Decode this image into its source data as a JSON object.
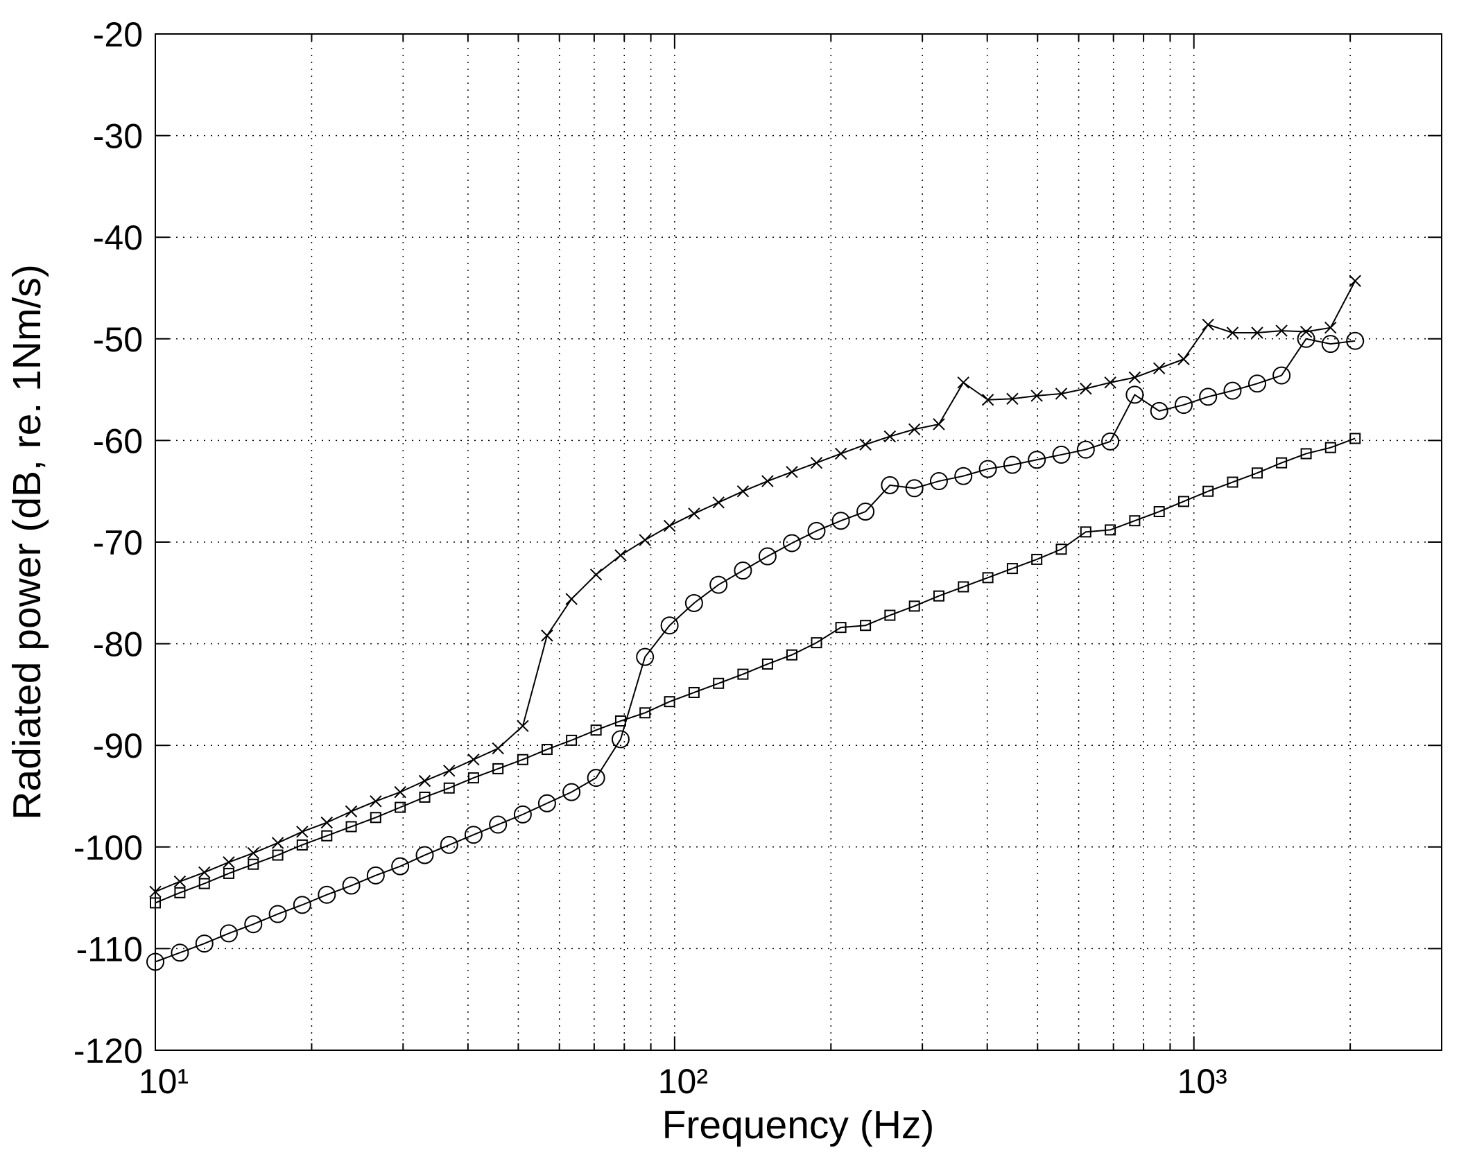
{
  "chart_data": {
    "type": "line",
    "xlabel": "Frequency (Hz)",
    "ylabel": "Radiated power (dB, re. 1Nm/s)",
    "xscale": "log",
    "grid": true,
    "minor_grid": true,
    "xlim": [
      10,
      3000
    ],
    "ylim": [
      -120,
      -20
    ],
    "xticks": [
      {
        "value": 10,
        "label": "10¹"
      },
      {
        "value": 100,
        "label": "10²"
      },
      {
        "value": 1000,
        "label": "10³"
      }
    ],
    "yticks": [
      -120,
      -110,
      -100,
      -90,
      -80,
      -70,
      -60,
      -50,
      -40,
      -30,
      -20
    ],
    "x": [
      10,
      11.15,
      12.43,
      13.85,
      15.44,
      17.21,
      19.18,
      21.39,
      23.84,
      26.57,
      29.62,
      33.02,
      36.8,
      41.0,
      45.7,
      51.0,
      56.8,
      63.3,
      70.6,
      78.7,
      87.7,
      97.8,
      109,
      121.5,
      135.4,
      151,
      168.2,
      187.6,
      209,
      233.1,
      259.8,
      289.6,
      322.8,
      359.8,
      401.1,
      447.1,
      498.3,
      555.5,
      619.2,
      690.2,
      769.2,
      857.5,
      955.7,
      1065,
      1187,
      1324,
      1475,
      1645,
      1833,
      2044
    ],
    "series": [
      {
        "color": "#000000",
        "marker": "x",
        "values": [
          -104.4,
          -103.4,
          -102.5,
          -101.5,
          -100.6,
          -99.6,
          -98.5,
          -97.6,
          -96.5,
          -95.5,
          -94.6,
          -93.5,
          -92.5,
          -91.4,
          -90.3,
          -88.1,
          -79.2,
          -75.6,
          -73.2,
          -71.3,
          -69.8,
          -68.4,
          -67.2,
          -66.1,
          -65.0,
          -64.0,
          -63.1,
          -62.2,
          -61.3,
          -60.4,
          -59.6,
          -58.9,
          -58.4,
          -54.3,
          -56.0,
          -55.9,
          -55.6,
          -55.4,
          -54.9,
          -54.3,
          -53.8,
          -52.9,
          -52.0,
          -48.6,
          -49.4,
          -49.4,
          -49.2,
          -49.3,
          -48.9,
          -44.3
        ]
      },
      {
        "color": "#000000",
        "marker": "o",
        "values": [
          -111.3,
          -110.4,
          -109.5,
          -108.5,
          -107.6,
          -106.6,
          -105.7,
          -104.7,
          -103.8,
          -102.8,
          -101.9,
          -100.8,
          -99.8,
          -98.8,
          -97.8,
          -96.8,
          -95.7,
          -94.6,
          -93.2,
          -89.4,
          -81.3,
          -78.2,
          -76.0,
          -74.2,
          -72.8,
          -71.4,
          -70.1,
          -68.9,
          -67.9,
          -67.0,
          -64.4,
          -64.7,
          -64.0,
          -63.5,
          -62.8,
          -62.4,
          -61.9,
          -61.4,
          -60.9,
          -60.1,
          -55.5,
          -57.1,
          -56.5,
          -55.7,
          -55.1,
          -54.4,
          -53.6,
          -50.0,
          -50.5,
          -50.2
        ]
      },
      {
        "color": "#000000",
        "marker": "s",
        "values": [
          -105.5,
          -104.5,
          -103.6,
          -102.6,
          -101.7,
          -100.8,
          -99.8,
          -98.9,
          -98.0,
          -97.1,
          -96.1,
          -95.1,
          -94.2,
          -93.2,
          -92.3,
          -91.4,
          -90.4,
          -89.5,
          -88.5,
          -87.6,
          -86.8,
          -85.7,
          -84.8,
          -83.9,
          -83.0,
          -82.0,
          -81.1,
          -79.9,
          -78.4,
          -78.2,
          -77.2,
          -76.3,
          -75.3,
          -74.4,
          -73.5,
          -72.6,
          -71.7,
          -70.7,
          -69.0,
          -68.8,
          -67.9,
          -67.0,
          -66.0,
          -65.0,
          -64.1,
          -63.2,
          -62.2,
          -61.3,
          -60.7,
          -59.8
        ]
      }
    ]
  }
}
